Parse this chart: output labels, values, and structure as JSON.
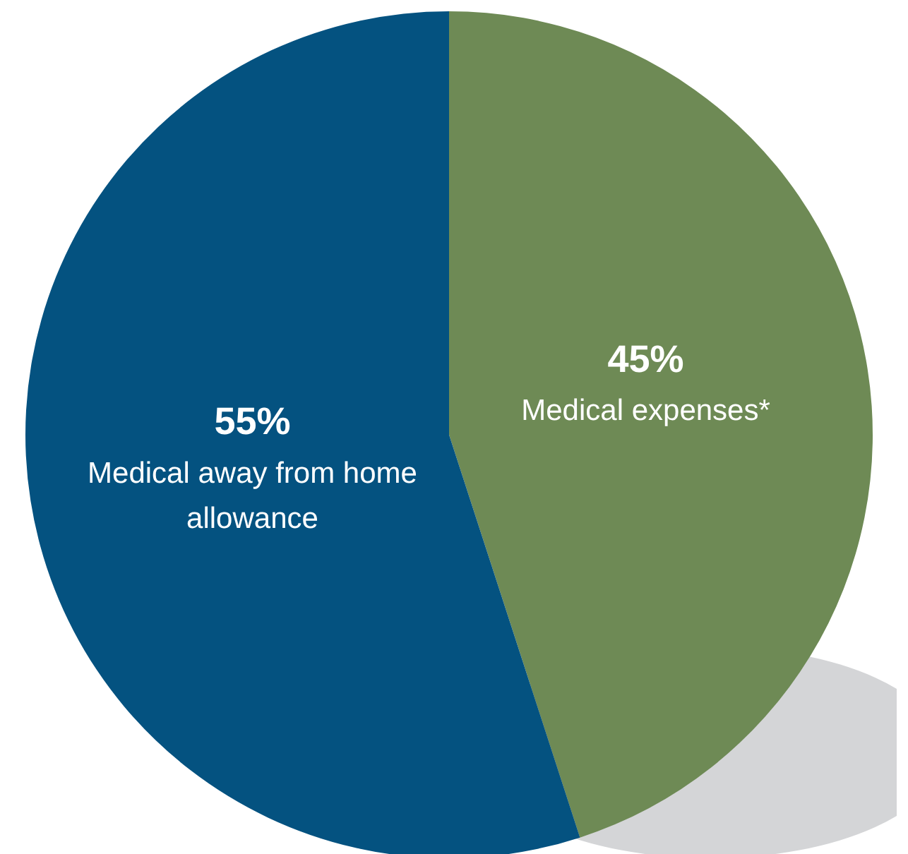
{
  "chart_data": {
    "type": "pie",
    "categories": [
      "Medical expenses*",
      "Medical away from home allowance"
    ],
    "values": [
      45,
      55
    ],
    "colors": [
      "#6e8a55",
      "#045280"
    ],
    "value_labels": [
      "45%",
      "55%"
    ]
  }
}
